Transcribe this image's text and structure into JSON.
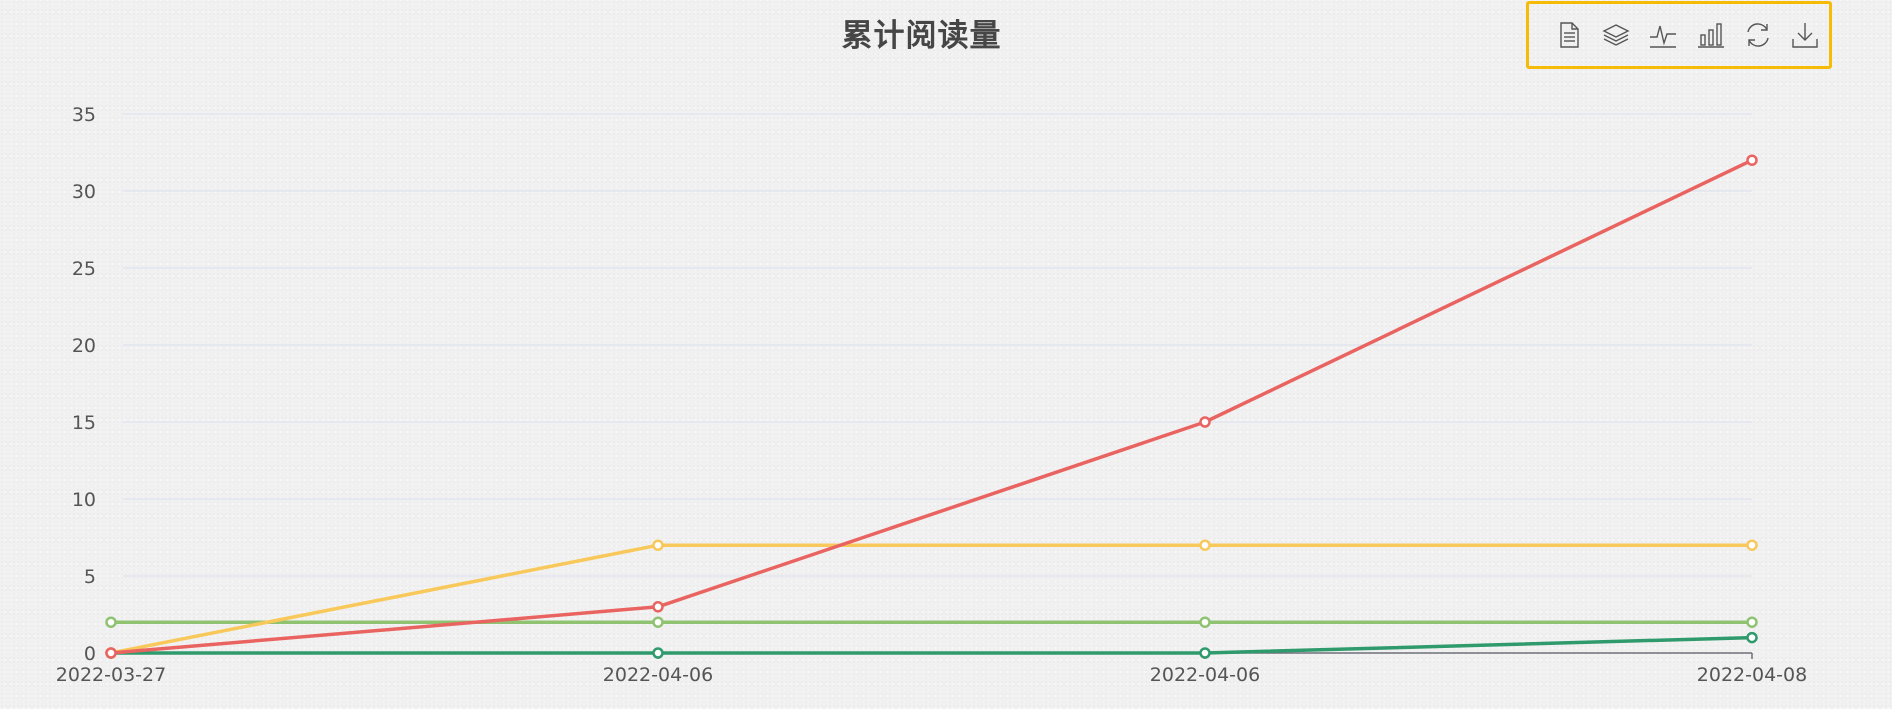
{
  "toolbox": {
    "tools": [
      {
        "name": "data-view-icon"
      },
      {
        "name": "stack-icon"
      },
      {
        "name": "line-chart-icon"
      },
      {
        "name": "bar-chart-icon"
      },
      {
        "name": "refresh-icon"
      },
      {
        "name": "download-icon"
      }
    ],
    "highlight_color": "#f5bb07"
  },
  "chart_data": {
    "type": "line",
    "title": "累计阅读量",
    "categories": [
      "2022-03-27",
      "2022-04-06",
      "2022-04-06",
      "2022-04-08"
    ],
    "ylim": [
      0,
      35
    ],
    "yticks": [
      0,
      5,
      10,
      15,
      20,
      25,
      30,
      35
    ],
    "grid": true,
    "series": [
      {
        "color": "#e96461",
        "values": [
          0,
          3,
          15,
          32
        ]
      },
      {
        "color": "#f8c95a",
        "values": [
          0,
          7,
          7,
          7
        ]
      },
      {
        "color": "#8fc271",
        "values": [
          2,
          2,
          2,
          2
        ]
      },
      {
        "color": "#2f9a6c",
        "values": [
          0,
          0,
          0,
          1
        ]
      }
    ]
  }
}
